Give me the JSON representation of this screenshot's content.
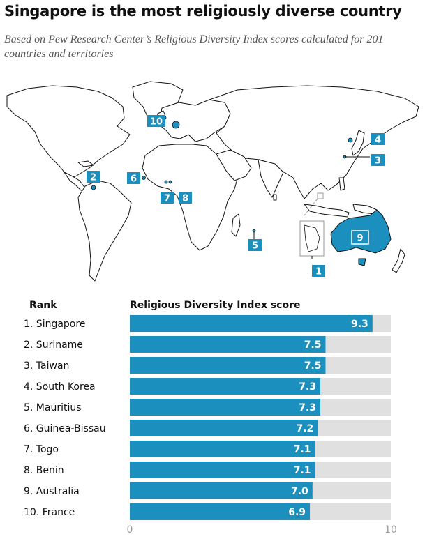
{
  "header": {
    "title": "Singapore is the most religiously diverse country",
    "subtitle": "Based on Pew Research Center’s Religious Diversity Index scores calculated for 201 countries and territories"
  },
  "colors": {
    "bar": "#1b8fbd",
    "track": "#e0e0e0",
    "highlight": "#1b8fbd"
  },
  "map": {
    "markers": [
      "1",
      "2",
      "3",
      "4",
      "5",
      "6",
      "7",
      "8",
      "9",
      "10"
    ]
  },
  "chart_data": {
    "type": "bar",
    "orientation": "horizontal",
    "rank_header": "Rank",
    "score_header": "Religious Diversity Index score",
    "categories": [
      "1. Singapore",
      "2. Suriname",
      "3. Taiwan",
      "4. South Korea",
      "5. Mauritius",
      "6. Guinea-Bissau",
      "7. Togo",
      "8. Benin",
      "9. Australia",
      "10. France"
    ],
    "values": [
      9.3,
      7.5,
      7.5,
      7.3,
      7.3,
      7.2,
      7.1,
      7.1,
      7.0,
      6.9
    ],
    "value_labels": [
      "9.3",
      "7.5",
      "7.5",
      "7.3",
      "7.3",
      "7.2",
      "7.1",
      "7.1",
      "7.0",
      "6.9"
    ],
    "xlim": [
      0,
      10
    ],
    "ticks": [
      "0",
      "10"
    ]
  }
}
